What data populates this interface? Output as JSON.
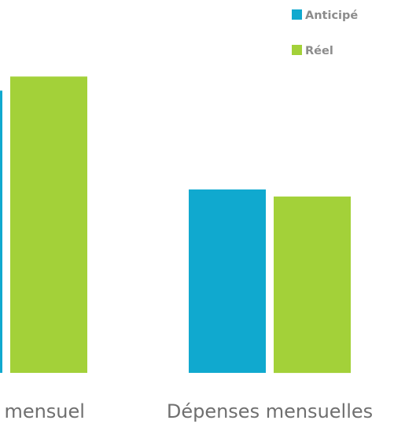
{
  "chart_data": {
    "type": "bar",
    "categories": [
      "Revenu mensuel",
      "Dépenses mensuelles"
    ],
    "series": [
      {
        "name": "Anticipé",
        "color": "#10A9CF",
        "values": [
          2000,
          1300
        ]
      },
      {
        "name": "Réel",
        "color": "#A3D139",
        "values": [
          2100,
          1250
        ]
      }
    ],
    "ylim": [
      0,
      2500
    ],
    "legend_position": "top-right",
    "grid": false,
    "cropped": true,
    "title": "",
    "xlabel": "",
    "ylabel": ""
  }
}
